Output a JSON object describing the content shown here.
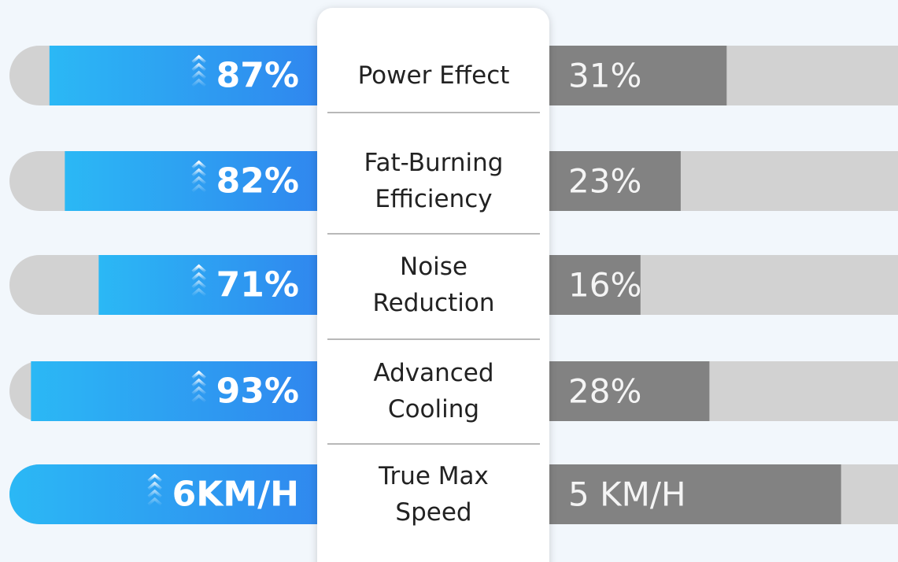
{
  "xlim": [
    0,
    100
  ],
  "rows": [
    {
      "label": [
        "Power Effect"
      ],
      "left": 87,
      "left_label": "87%",
      "right": 31,
      "right_label": "31%"
    },
    {
      "label": [
        "Fat-Burning",
        "Efficiency"
      ],
      "left": 82,
      "left_label": "82%",
      "right": 23,
      "right_label": "23%"
    },
    {
      "label": [
        "Noise",
        "Reduction"
      ],
      "left": 71,
      "left_label": "71%",
      "right": 16,
      "right_label": "16%"
    },
    {
      "label": [
        "Advanced",
        "Cooling"
      ],
      "left": 93,
      "left_label": "93%",
      "right": 28,
      "right_label": "28%"
    },
    {
      "label": [
        "True Max",
        "Speed"
      ],
      "left": 6,
      "left_label": "6KM/H",
      "right": 5,
      "right_label": "5 KM/H",
      "xlim": [
        0,
        6
      ]
    }
  ]
}
